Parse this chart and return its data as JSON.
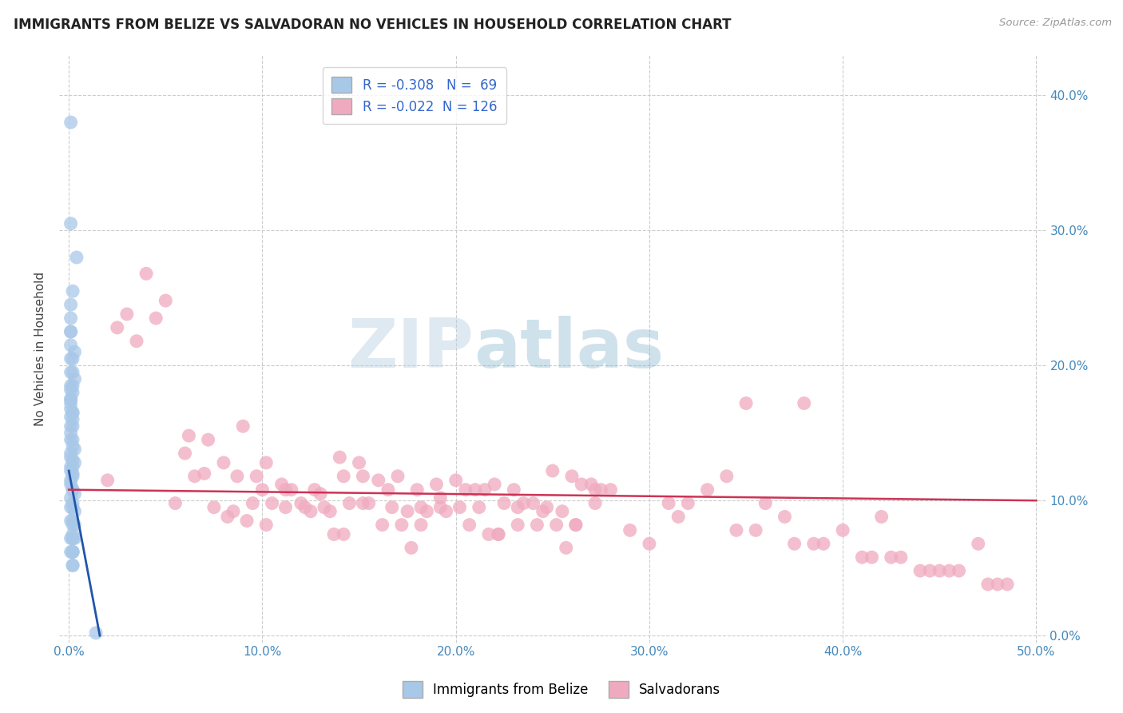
{
  "title": "IMMIGRANTS FROM BELIZE VS SALVADORAN NO VEHICLES IN HOUSEHOLD CORRELATION CHART",
  "source": "Source: ZipAtlas.com",
  "ylabel": "No Vehicles in Household",
  "ytick_labels_right": [
    "0.0%",
    "10.0%",
    "20.0%",
    "30.0%",
    "40.0%"
  ],
  "ytick_values": [
    0.0,
    0.1,
    0.2,
    0.3,
    0.4
  ],
  "xtick_labels": [
    "0.0%",
    "10.0%",
    "20.0%",
    "30.0%",
    "40.0%",
    "50.0%"
  ],
  "xtick_values": [
    0.0,
    0.1,
    0.2,
    0.3,
    0.4,
    0.5
  ],
  "xlim": [
    -0.005,
    0.505
  ],
  "ylim": [
    -0.005,
    0.43
  ],
  "blue_R": -0.308,
  "blue_N": 69,
  "pink_R": -0.022,
  "pink_N": 126,
  "blue_color": "#a8c8e8",
  "pink_color": "#f0aac0",
  "blue_line_color": "#2255aa",
  "pink_line_color": "#cc3355",
  "grid_color": "#cccccc",
  "watermark_zip": "ZIP",
  "watermark_atlas": "atlas",
  "legend_label_blue": "Immigrants from Belize",
  "legend_label_pink": "Salvadorans",
  "blue_scatter_x": [
    0.001,
    0.004,
    0.001,
    0.001,
    0.002,
    0.002,
    0.001,
    0.002,
    0.002,
    0.001,
    0.003,
    0.003,
    0.001,
    0.001,
    0.002,
    0.002,
    0.002,
    0.002,
    0.002,
    0.001,
    0.002,
    0.001,
    0.001,
    0.002,
    0.002,
    0.002,
    0.001,
    0.001,
    0.003,
    0.003,
    0.001,
    0.002,
    0.002,
    0.002,
    0.001,
    0.002,
    0.002,
    0.001,
    0.001,
    0.001,
    0.002,
    0.002,
    0.001,
    0.001,
    0.003,
    0.001,
    0.001,
    0.002,
    0.001,
    0.003,
    0.002,
    0.001,
    0.002,
    0.002,
    0.001,
    0.001,
    0.002,
    0.001,
    0.003,
    0.001,
    0.002,
    0.002,
    0.002,
    0.001,
    0.001,
    0.002,
    0.001,
    0.003,
    0.014
  ],
  "blue_scatter_y": [
    0.38,
    0.28,
    0.305,
    0.245,
    0.255,
    0.205,
    0.225,
    0.195,
    0.185,
    0.215,
    0.21,
    0.19,
    0.235,
    0.175,
    0.165,
    0.18,
    0.155,
    0.145,
    0.165,
    0.225,
    0.16,
    0.195,
    0.15,
    0.14,
    0.13,
    0.12,
    0.175,
    0.168,
    0.138,
    0.128,
    0.185,
    0.118,
    0.108,
    0.125,
    0.135,
    0.108,
    0.098,
    0.155,
    0.115,
    0.205,
    0.095,
    0.085,
    0.125,
    0.095,
    0.105,
    0.145,
    0.085,
    0.075,
    0.182,
    0.092,
    0.082,
    0.112,
    0.072,
    0.062,
    0.132,
    0.072,
    0.062,
    0.172,
    0.082,
    0.102,
    0.072,
    0.062,
    0.052,
    0.122,
    0.062,
    0.052,
    0.162,
    0.072,
    0.002
  ],
  "pink_scatter_x": [
    0.02,
    0.06,
    0.09,
    0.11,
    0.15,
    0.18,
    0.2,
    0.08,
    0.13,
    0.17,
    0.22,
    0.25,
    0.07,
    0.1,
    0.14,
    0.19,
    0.23,
    0.26,
    0.04,
    0.12,
    0.16,
    0.21,
    0.24,
    0.27,
    0.05,
    0.085,
    0.115,
    0.145,
    0.175,
    0.205,
    0.235,
    0.265,
    0.03,
    0.095,
    0.125,
    0.155,
    0.185,
    0.215,
    0.245,
    0.275,
    0.065,
    0.105,
    0.135,
    0.165,
    0.195,
    0.225,
    0.255,
    0.28,
    0.025,
    0.075,
    0.045,
    0.055,
    0.035,
    0.112,
    0.152,
    0.192,
    0.232,
    0.272,
    0.082,
    0.122,
    0.162,
    0.202,
    0.242,
    0.092,
    0.132,
    0.172,
    0.212,
    0.252,
    0.102,
    0.142,
    0.182,
    0.222,
    0.262,
    0.072,
    0.112,
    0.152,
    0.192,
    0.232,
    0.272,
    0.087,
    0.127,
    0.167,
    0.207,
    0.247,
    0.062,
    0.102,
    0.142,
    0.182,
    0.222,
    0.262,
    0.097,
    0.137,
    0.177,
    0.217,
    0.257,
    0.35,
    0.4,
    0.42,
    0.38,
    0.31,
    0.45,
    0.47,
    0.36,
    0.39,
    0.43,
    0.46,
    0.32,
    0.34,
    0.41,
    0.44,
    0.48,
    0.33,
    0.37,
    0.29,
    0.3,
    0.415,
    0.445,
    0.475,
    0.355,
    0.385,
    0.425,
    0.455,
    0.485,
    0.315,
    0.345,
    0.375
  ],
  "pink_scatter_y": [
    0.115,
    0.135,
    0.155,
    0.112,
    0.128,
    0.108,
    0.115,
    0.128,
    0.105,
    0.118,
    0.112,
    0.122,
    0.12,
    0.108,
    0.132,
    0.112,
    0.108,
    0.118,
    0.268,
    0.098,
    0.115,
    0.108,
    0.098,
    0.112,
    0.248,
    0.092,
    0.108,
    0.098,
    0.092,
    0.108,
    0.098,
    0.112,
    0.238,
    0.098,
    0.092,
    0.098,
    0.092,
    0.108,
    0.092,
    0.108,
    0.118,
    0.098,
    0.092,
    0.108,
    0.092,
    0.098,
    0.092,
    0.108,
    0.228,
    0.095,
    0.235,
    0.098,
    0.218,
    0.095,
    0.098,
    0.102,
    0.095,
    0.098,
    0.088,
    0.095,
    0.082,
    0.095,
    0.082,
    0.085,
    0.095,
    0.082,
    0.095,
    0.082,
    0.082,
    0.075,
    0.082,
    0.075,
    0.082,
    0.145,
    0.108,
    0.118,
    0.095,
    0.082,
    0.108,
    0.118,
    0.108,
    0.095,
    0.082,
    0.095,
    0.148,
    0.128,
    0.118,
    0.095,
    0.075,
    0.082,
    0.118,
    0.075,
    0.065,
    0.075,
    0.065,
    0.172,
    0.078,
    0.088,
    0.172,
    0.098,
    0.048,
    0.068,
    0.098,
    0.068,
    0.058,
    0.048,
    0.098,
    0.118,
    0.058,
    0.048,
    0.038,
    0.108,
    0.088,
    0.078,
    0.068,
    0.058,
    0.048,
    0.038,
    0.078,
    0.068,
    0.058,
    0.048,
    0.038,
    0.088,
    0.078,
    0.068
  ],
  "blue_line_x": [
    0.0,
    0.016
  ],
  "blue_line_y": [
    0.122,
    0.0
  ],
  "pink_line_x": [
    0.0,
    0.5
  ],
  "pink_line_y": [
    0.108,
    0.1
  ]
}
